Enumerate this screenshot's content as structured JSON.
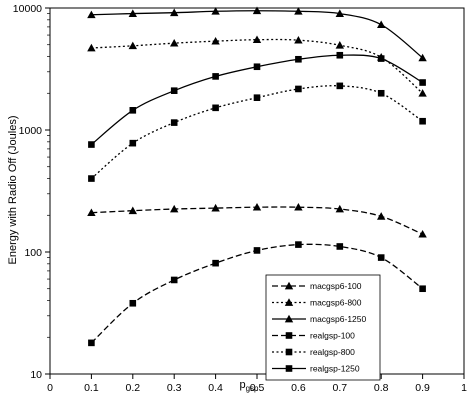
{
  "chart_data": {
    "type": "line",
    "ylabel": "Energy with Radio Off (Joules)",
    "xlabel_main": "p",
    "xlabel_sub": "gsp",
    "yscale": "log",
    "ylim": [
      10,
      10000
    ],
    "xlim": [
      0,
      1
    ],
    "x_ticks": [
      "0",
      "0.1",
      "0.2",
      "0.3",
      "0.4",
      "0.5",
      "0.6",
      "0.7",
      "0.8",
      "0.9",
      "1"
    ],
    "y_ticks": [
      "10",
      "100",
      "1000",
      "10000"
    ],
    "grid": false,
    "legend_position": "bottom-right",
    "x": [
      0.1,
      0.2,
      0.3,
      0.4,
      0.5,
      0.6,
      0.7,
      0.8,
      0.9
    ],
    "series": [
      {
        "name": "macgsp6-100",
        "marker": "triangle",
        "dash": "dashed",
        "values": [
          210,
          218,
          225,
          229,
          233,
          233,
          225,
          196,
          140
        ]
      },
      {
        "name": "macgsp6-800",
        "marker": "triangle",
        "dash": "dotted",
        "values": [
          4700,
          4900,
          5150,
          5350,
          5500,
          5450,
          4950,
          3950,
          2000
        ]
      },
      {
        "name": "macgsp6-1250",
        "marker": "triangle",
        "dash": "solid",
        "values": [
          8800,
          9000,
          9150,
          9400,
          9500,
          9400,
          9000,
          7300,
          3900
        ]
      },
      {
        "name": "realgsp-100",
        "marker": "square",
        "dash": "dashed",
        "values": [
          18,
          38,
          59,
          81,
          103,
          115,
          111,
          90,
          50
        ]
      },
      {
        "name": "realgsp-800",
        "marker": "square",
        "dash": "dotted",
        "values": [
          400,
          780,
          1150,
          1520,
          1840,
          2170,
          2300,
          2000,
          1180
        ]
      },
      {
        "name": "realgsp-1250",
        "marker": "square",
        "dash": "solid",
        "values": [
          760,
          1450,
          2100,
          2750,
          3300,
          3800,
          4100,
          3850,
          2450
        ]
      }
    ]
  }
}
